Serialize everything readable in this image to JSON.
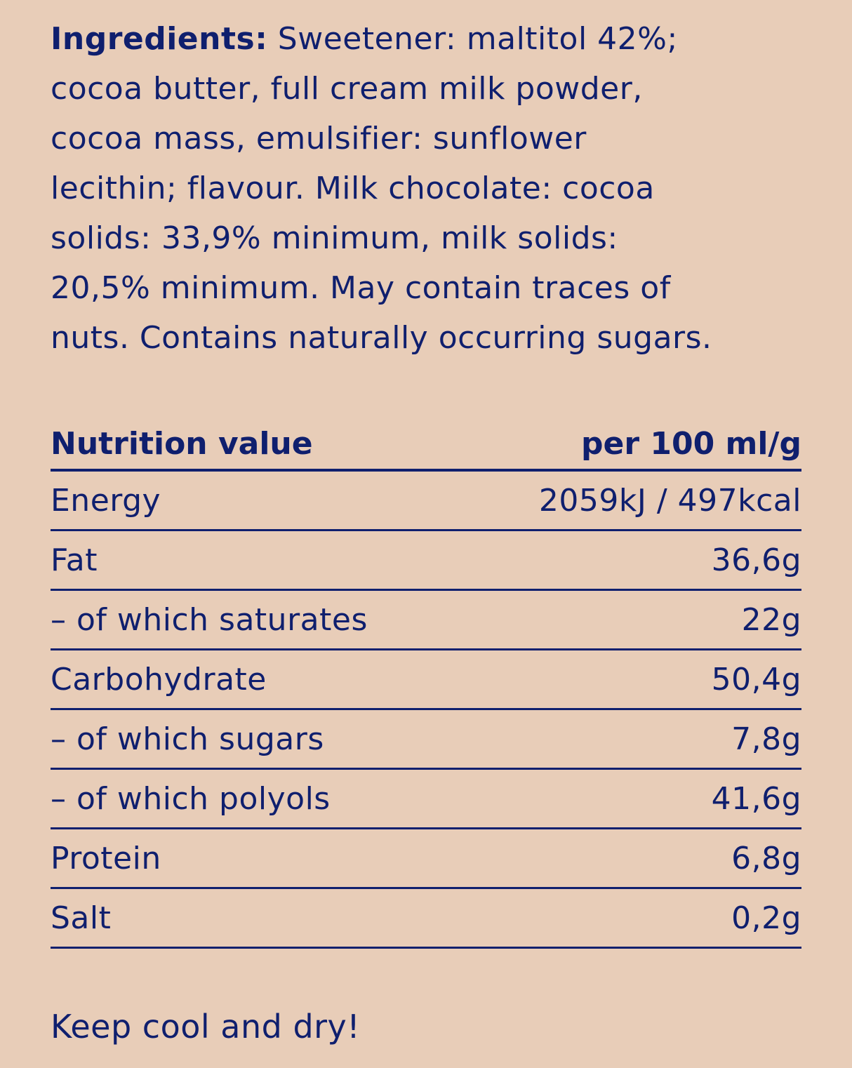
{
  "ingredients": {
    "label": "Ingredients:",
    "lines": [
      " Sweetener: maltitol 42%;",
      "cocoa butter, full cream milk powder,",
      "cocoa mass, emulsifier: sunflower",
      "lecithin; flavour. Milk chocolate: cocoa",
      "solids: 33,9% minimum, milk solids:",
      "20,5% minimum. May contain traces of",
      "nuts. Contains naturally occurring sugars."
    ]
  },
  "nutrition": {
    "header": {
      "label": "Nutrition value",
      "unit": "per 100 ml/g"
    },
    "rows": [
      {
        "label": "Energy",
        "value": "2059kJ / 497kcal"
      },
      {
        "label": "Fat",
        "value": "36,6g"
      },
      {
        "label": "– of which saturates",
        "value": "22g"
      },
      {
        "label": "Carbohydrate",
        "value": "50,4g"
      },
      {
        "label": "– of which sugars",
        "value": "7,8g"
      },
      {
        "label": "– of which polyols",
        "value": "41,6g"
      },
      {
        "label": "Protein",
        "value": "6,8g"
      },
      {
        "label": "Salt",
        "value": "0,2g"
      }
    ]
  },
  "storage_note": "Keep cool and dry!",
  "colors": {
    "background": "#e8cdb8",
    "text": "#0f1f6e"
  }
}
